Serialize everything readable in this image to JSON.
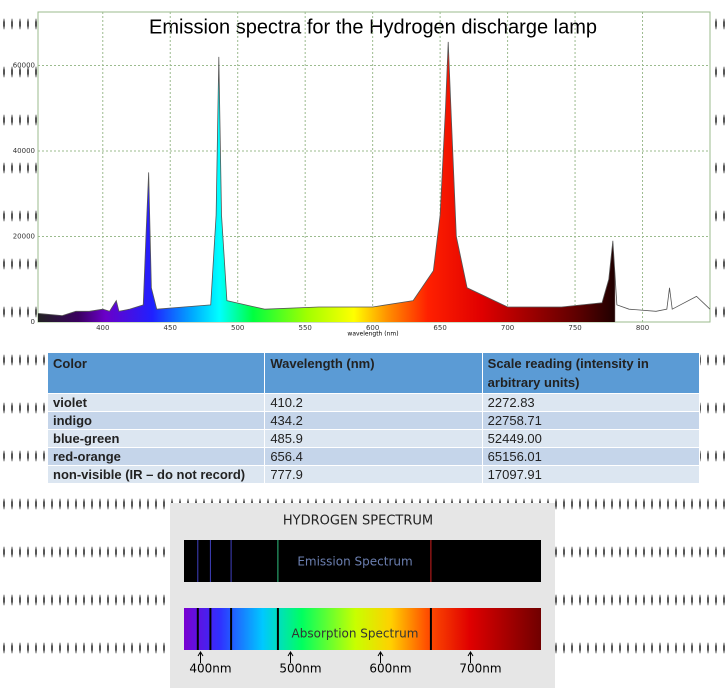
{
  "chart_data": {
    "type": "line",
    "title": "Emission spectra for the Hydrogen discharge lamp",
    "x_label": "wavelength (nm)",
    "x": [
      352,
      370,
      380,
      390,
      400,
      405,
      410,
      412,
      420,
      430,
      432,
      434,
      436,
      440,
      460,
      480,
      484,
      486,
      488,
      492,
      520,
      560,
      600,
      630,
      645,
      650,
      654,
      656,
      658,
      662,
      670,
      700,
      740,
      770,
      775,
      778,
      781,
      790,
      810,
      818,
      820,
      822,
      840,
      850
    ],
    "series": [
      {
        "name": "intensity",
        "color": "#555555",
        "values": [
          2000,
          1500,
          2500,
          2500,
          3000,
          2500,
          5000,
          2500,
          3000,
          4000,
          20000,
          35000,
          8000,
          3000,
          3500,
          4000,
          25000,
          62000,
          25000,
          5000,
          3000,
          3500,
          3500,
          5000,
          12000,
          25000,
          50000,
          65500,
          50000,
          20000,
          8000,
          3500,
          3500,
          4500,
          10000,
          19000,
          4000,
          3000,
          2500,
          3000,
          8000,
          3000,
          6000,
          3000
        ]
      }
    ],
    "xlim": [
      352,
      850
    ],
    "ylim": [
      0,
      72500
    ],
    "xticks": [
      400,
      450,
      500,
      550,
      600,
      650,
      700,
      750,
      800
    ],
    "yticks": [
      0,
      20000,
      40000,
      60000
    ],
    "grid": true
  },
  "table": {
    "header": [
      "Color",
      "Wavelength (nm)",
      "Scale reading (intensity in arbitrary units)"
    ],
    "rows": [
      [
        "violet",
        "410.2",
        "2272.83"
      ],
      [
        "indigo",
        "434.2",
        "22758.71"
      ],
      [
        "blue-green",
        "485.9",
        "52449.00"
      ],
      [
        "red-orange",
        "656.4",
        "65156.01"
      ],
      [
        "non-visible (IR – do not record)",
        "777.9",
        "17097.91"
      ]
    ]
  },
  "spectrum": {
    "title": "HYDROGEN SPECTRUM",
    "emission_label": "Emission Spectrum",
    "absorption_label": "Absorption Spectrum",
    "lines": [
      397,
      411,
      434,
      486,
      656
    ],
    "ticks": [
      {
        "value": 400,
        "label": "400nm"
      },
      {
        "value": 500,
        "label": "500nm"
      },
      {
        "value": 600,
        "label": "600nm"
      },
      {
        "value": 700,
        "label": "700nm"
      }
    ]
  }
}
